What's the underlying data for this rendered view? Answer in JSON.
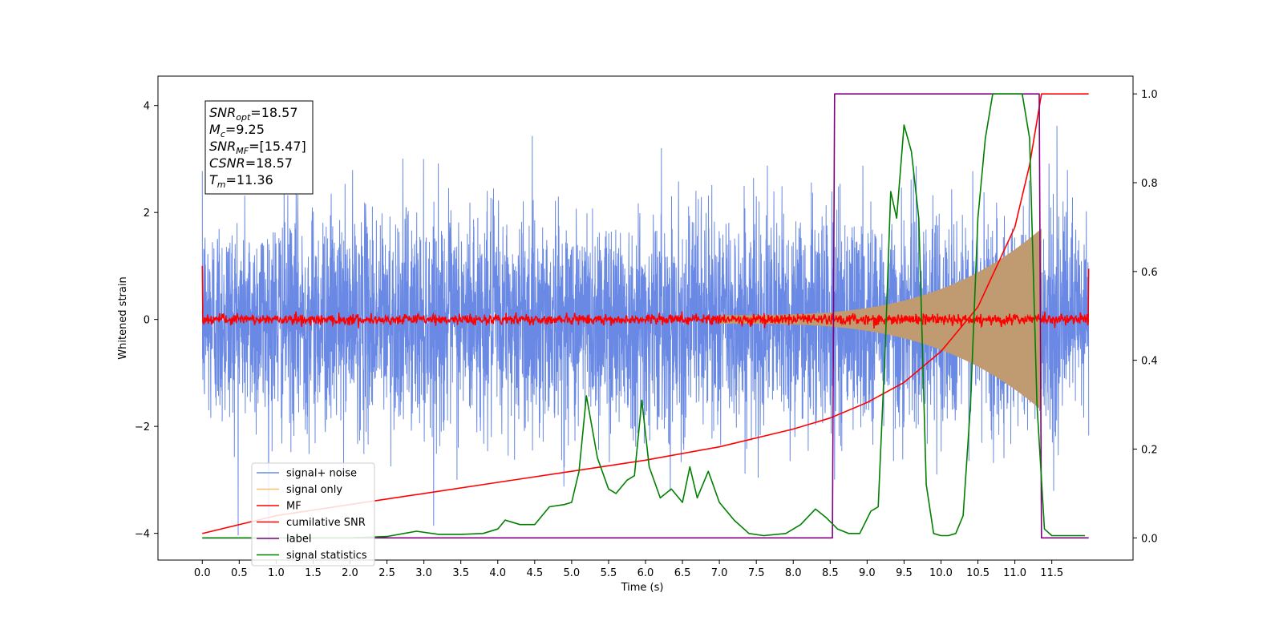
{
  "chart_data": {
    "type": "line",
    "xlabel": "Time (s)",
    "ylabel": "Whitened strain",
    "xlim": [
      -0.6,
      12.6
    ],
    "ylim": [
      -4.5,
      4.55
    ],
    "y2lim": [
      -0.05,
      1.04
    ],
    "x_ticks": [
      "0.0",
      "0.5",
      "1.0",
      "1.5",
      "2.0",
      "2.5",
      "3.0",
      "3.5",
      "4.0",
      "4.5",
      "5.0",
      "5.5",
      "6.0",
      "6.5",
      "7.0",
      "7.5",
      "8.0",
      "8.5",
      "9.0",
      "9.5",
      "10.0",
      "10.5",
      "11.0",
      "11.5"
    ],
    "y_ticks": [
      "4",
      "2",
      "0",
      "−2",
      "−4"
    ],
    "y2_ticks": [
      "1.0",
      "0.8",
      "0.6",
      "0.4",
      "0.2",
      "0.0"
    ],
    "grid": false,
    "legend_position": "lower-left",
    "annotation": {
      "lines": [
        {
          "main": "SNR",
          "sub": "opt",
          "value": "=18.57"
        },
        {
          "main": "M",
          "sub": "c",
          "value": "=9.25"
        },
        {
          "main": "SNR",
          "sub": "MF",
          "value": "=[15.47]"
        },
        {
          "main": "CSNR",
          "sub": "",
          "value": "=18.57"
        },
        {
          "main": "T",
          "sub": "m",
          "value": "=11.36"
        }
      ]
    },
    "series": [
      {
        "name": "signal+ noise",
        "color": "#6a89e4",
        "axis": "left",
        "description_values": {
          "duration": 12.0,
          "sigma": 1.0,
          "range": [
            -4.2,
            4.2
          ]
        }
      },
      {
        "name": "signal only",
        "color": "#f5c16c",
        "axis": "left",
        "envelope": {
          "t_start": 7.0,
          "t_end": 11.36,
          "amplitude_start": 0.08,
          "amplitude_end": 1.7
        }
      },
      {
        "name": "MF",
        "color": "#ff0000",
        "axis": "left",
        "endpoints": {
          "x": [
            0.0,
            12.0
          ],
          "y": [
            1.0,
            0.95
          ]
        }
      },
      {
        "name": "cumilative SNR",
        "color": "#ff0000",
        "axis": "right",
        "x": [
          0.0,
          1.0,
          2.0,
          3.0,
          4.0,
          5.0,
          6.0,
          7.0,
          8.0,
          8.5,
          9.0,
          9.5,
          10.0,
          10.5,
          11.0,
          11.2,
          11.36,
          12.0
        ],
        "y": [
          0.01,
          0.05,
          0.075,
          0.1,
          0.125,
          0.15,
          0.175,
          0.205,
          0.245,
          0.27,
          0.305,
          0.35,
          0.42,
          0.52,
          0.7,
          0.84,
          1.0,
          1.0
        ]
      },
      {
        "name": "label",
        "color": "#800080",
        "axis": "right",
        "x": [
          0.0,
          8.53,
          8.56,
          11.33,
          11.36,
          12.0
        ],
        "y": [
          0.0,
          0.0,
          1.0,
          1.0,
          0.0,
          0.0
        ]
      },
      {
        "name": "signal statistics",
        "color": "#008000",
        "axis": "right",
        "x": [
          0.0,
          1.0,
          2.0,
          2.5,
          2.9,
          3.2,
          3.5,
          3.8,
          4.0,
          4.1,
          4.3,
          4.5,
          4.7,
          4.9,
          5.0,
          5.1,
          5.2,
          5.35,
          5.5,
          5.6,
          5.75,
          5.85,
          5.95,
          6.05,
          6.2,
          6.35,
          6.5,
          6.6,
          6.7,
          6.85,
          7.0,
          7.2,
          7.4,
          7.6,
          7.9,
          8.1,
          8.3,
          8.45,
          8.6,
          8.75,
          8.9,
          9.05,
          9.15,
          9.25,
          9.32,
          9.4,
          9.5,
          9.6,
          9.7,
          9.8,
          9.9,
          10.0,
          10.1,
          10.2,
          10.3,
          10.4,
          10.5,
          10.6,
          10.7,
          10.8,
          10.9,
          11.0,
          11.1,
          11.2,
          11.3,
          11.4,
          11.5,
          11.7,
          11.95
        ],
        "y": [
          0.0,
          0.0,
          0.0,
          0.003,
          0.015,
          0.008,
          0.008,
          0.01,
          0.02,
          0.04,
          0.03,
          0.03,
          0.07,
          0.075,
          0.08,
          0.15,
          0.32,
          0.18,
          0.11,
          0.1,
          0.13,
          0.14,
          0.31,
          0.16,
          0.09,
          0.11,
          0.08,
          0.16,
          0.09,
          0.15,
          0.08,
          0.04,
          0.01,
          0.005,
          0.01,
          0.03,
          0.065,
          0.045,
          0.02,
          0.01,
          0.01,
          0.06,
          0.07,
          0.45,
          0.78,
          0.72,
          0.93,
          0.87,
          0.72,
          0.12,
          0.01,
          0.005,
          0.005,
          0.01,
          0.05,
          0.3,
          0.72,
          0.9,
          1.0,
          1.0,
          1.0,
          1.0,
          1.0,
          0.9,
          0.3,
          0.02,
          0.005,
          0.005,
          0.005
        ]
      }
    ]
  }
}
